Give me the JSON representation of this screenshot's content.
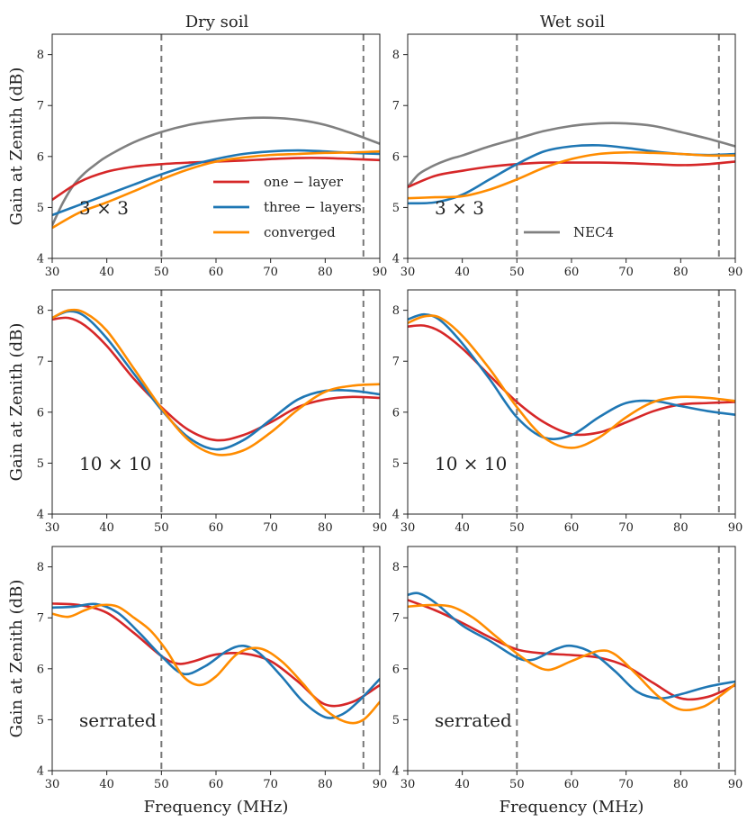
{
  "figure": {
    "col_titles": [
      "Dry soil",
      "Wet soil"
    ],
    "ylabel": "Gain at Zenith (dB)",
    "xlabel": "Frequency (MHz)"
  },
  "colors": {
    "one-layer": "#d62728",
    "three-layers": "#1f77b4",
    "converged": "#ff8c00",
    "NEC4": "#808080",
    "vline": "#777777"
  },
  "legend": {
    "left": [
      {
        "key": "one-layer",
        "label": "one − layer"
      },
      {
        "key": "three-layers",
        "label": "three − layers"
      },
      {
        "key": "converged",
        "label": "converged"
      }
    ],
    "right": [
      {
        "key": "NEC4",
        "label": "NEC4"
      }
    ]
  },
  "chart_data": [
    {
      "type": "line",
      "title": "Dry soil",
      "panel_label": "3 × 3",
      "xlim": [
        30,
        90
      ],
      "ylim": [
        4,
        8.4
      ],
      "xticks": [
        30,
        40,
        50,
        60,
        70,
        80,
        90
      ],
      "yticks": [
        4,
        5,
        6,
        7,
        8
      ],
      "xlabel": "",
      "ylabel": "Gain at Zenith (dB)",
      "vlines": [
        50,
        87
      ],
      "series": [
        {
          "name": "NEC4",
          "x": [
            30,
            32,
            34,
            36,
            38,
            40,
            45,
            50,
            55,
            60,
            65,
            70,
            75,
            80,
            85,
            90
          ],
          "values": [
            4.65,
            5.1,
            5.45,
            5.68,
            5.85,
            6.0,
            6.28,
            6.48,
            6.62,
            6.7,
            6.75,
            6.76,
            6.72,
            6.62,
            6.45,
            6.25
          ]
        },
        {
          "name": "one-layer",
          "x": [
            30,
            35,
            40,
            45,
            50,
            55,
            60,
            65,
            70,
            75,
            80,
            85,
            90
          ],
          "values": [
            5.15,
            5.5,
            5.7,
            5.8,
            5.85,
            5.88,
            5.9,
            5.92,
            5.95,
            5.97,
            5.97,
            5.95,
            5.93
          ]
        },
        {
          "name": "three-layers",
          "x": [
            30,
            35,
            40,
            45,
            50,
            55,
            60,
            65,
            70,
            75,
            80,
            85,
            90
          ],
          "values": [
            4.85,
            5.05,
            5.25,
            5.45,
            5.65,
            5.82,
            5.95,
            6.05,
            6.1,
            6.12,
            6.1,
            6.07,
            6.05
          ]
        },
        {
          "name": "converged",
          "x": [
            30,
            35,
            40,
            45,
            50,
            55,
            60,
            65,
            70,
            75,
            80,
            85,
            90
          ],
          "values": [
            4.6,
            4.9,
            5.1,
            5.32,
            5.55,
            5.75,
            5.9,
            5.98,
            6.03,
            6.05,
            6.07,
            6.08,
            6.1
          ]
        }
      ]
    },
    {
      "type": "line",
      "title": "Wet soil",
      "panel_label": "3 × 3",
      "xlim": [
        30,
        90
      ],
      "ylim": [
        4,
        8.4
      ],
      "xticks": [
        30,
        40,
        50,
        60,
        70,
        80,
        90
      ],
      "yticks": [
        4,
        5,
        6,
        7,
        8
      ],
      "xlabel": "",
      "ylabel": "",
      "vlines": [
        50,
        87
      ],
      "series": [
        {
          "name": "NEC4",
          "x": [
            30,
            32,
            34,
            36,
            38,
            40,
            45,
            50,
            55,
            60,
            65,
            70,
            75,
            80,
            85,
            90
          ],
          "values": [
            5.4,
            5.65,
            5.78,
            5.88,
            5.96,
            6.02,
            6.2,
            6.35,
            6.5,
            6.6,
            6.65,
            6.65,
            6.6,
            6.48,
            6.35,
            6.2
          ]
        },
        {
          "name": "one-layer",
          "x": [
            30,
            35,
            40,
            45,
            50,
            55,
            60,
            65,
            70,
            75,
            80,
            85,
            90
          ],
          "values": [
            5.4,
            5.62,
            5.72,
            5.8,
            5.85,
            5.88,
            5.88,
            5.88,
            5.87,
            5.85,
            5.83,
            5.85,
            5.9
          ]
        },
        {
          "name": "three-layers",
          "x": [
            30,
            35,
            40,
            45,
            50,
            55,
            60,
            65,
            70,
            75,
            80,
            85,
            90
          ],
          "values": [
            5.08,
            5.1,
            5.25,
            5.55,
            5.85,
            6.1,
            6.2,
            6.22,
            6.17,
            6.1,
            6.05,
            6.03,
            6.05
          ]
        },
        {
          "name": "converged",
          "x": [
            30,
            35,
            40,
            45,
            50,
            55,
            60,
            65,
            70,
            75,
            80,
            85,
            90
          ],
          "values": [
            5.18,
            5.2,
            5.22,
            5.35,
            5.55,
            5.78,
            5.95,
            6.05,
            6.08,
            6.07,
            6.05,
            6.02,
            6.02
          ]
        }
      ]
    },
    {
      "type": "line",
      "title": "",
      "panel_label": "10 × 10",
      "xlim": [
        30,
        90
      ],
      "ylim": [
        4,
        8.4
      ],
      "xticks": [
        30,
        40,
        50,
        60,
        70,
        80,
        90
      ],
      "yticks": [
        4,
        5,
        6,
        7,
        8
      ],
      "xlabel": "",
      "ylabel": "Gain at Zenith (dB)",
      "vlines": [
        50,
        87
      ],
      "series": [
        {
          "name": "one-layer",
          "x": [
            30,
            33,
            36,
            40,
            45,
            50,
            55,
            60,
            65,
            70,
            75,
            80,
            85,
            90
          ],
          "values": [
            7.82,
            7.85,
            7.7,
            7.3,
            6.65,
            6.1,
            5.65,
            5.45,
            5.55,
            5.8,
            6.1,
            6.25,
            6.3,
            6.28
          ]
        },
        {
          "name": "three-layers",
          "x": [
            30,
            33,
            36,
            40,
            45,
            50,
            55,
            60,
            65,
            70,
            75,
            80,
            85,
            90
          ],
          "values": [
            7.85,
            7.98,
            7.88,
            7.45,
            6.75,
            6.05,
            5.5,
            5.27,
            5.45,
            5.85,
            6.25,
            6.42,
            6.42,
            6.35
          ]
        },
        {
          "name": "converged",
          "x": [
            30,
            33,
            36,
            40,
            45,
            50,
            55,
            60,
            65,
            70,
            75,
            80,
            85,
            90
          ],
          "values": [
            7.85,
            8.0,
            7.95,
            7.6,
            6.85,
            6.08,
            5.45,
            5.17,
            5.25,
            5.6,
            6.05,
            6.4,
            6.52,
            6.55
          ]
        }
      ]
    },
    {
      "type": "line",
      "title": "",
      "panel_label": "10 × 10",
      "xlim": [
        30,
        90
      ],
      "ylim": [
        4,
        8.4
      ],
      "xticks": [
        30,
        40,
        50,
        60,
        70,
        80,
        90
      ],
      "yticks": [
        4,
        5,
        6,
        7,
        8
      ],
      "xlabel": "",
      "ylabel": "",
      "vlines": [
        50,
        87
      ],
      "series": [
        {
          "name": "one-layer",
          "x": [
            30,
            33,
            36,
            40,
            45,
            50,
            55,
            60,
            65,
            70,
            75,
            80,
            85,
            90
          ],
          "values": [
            7.68,
            7.7,
            7.58,
            7.25,
            6.72,
            6.2,
            5.8,
            5.57,
            5.6,
            5.8,
            6.02,
            6.15,
            6.18,
            6.2
          ]
        },
        {
          "name": "three-layers",
          "x": [
            30,
            33,
            36,
            40,
            45,
            50,
            55,
            60,
            65,
            70,
            75,
            80,
            85,
            90
          ],
          "values": [
            7.82,
            7.92,
            7.8,
            7.35,
            6.65,
            5.9,
            5.5,
            5.55,
            5.9,
            6.18,
            6.22,
            6.12,
            6.02,
            5.95
          ]
        },
        {
          "name": "converged",
          "x": [
            30,
            33,
            36,
            40,
            45,
            50,
            55,
            60,
            65,
            70,
            75,
            80,
            85,
            90
          ],
          "values": [
            7.75,
            7.88,
            7.85,
            7.5,
            6.85,
            6.1,
            5.5,
            5.3,
            5.5,
            5.9,
            6.2,
            6.3,
            6.28,
            6.22
          ]
        }
      ]
    },
    {
      "type": "line",
      "title": "",
      "panel_label": "serrated",
      "xlim": [
        30,
        90
      ],
      "ylim": [
        4,
        8.4
      ],
      "xticks": [
        30,
        40,
        50,
        60,
        70,
        80,
        90
      ],
      "yticks": [
        4,
        5,
        6,
        7,
        8
      ],
      "xlabel": "Frequency (MHz)",
      "ylabel": "Gain at Zenith (dB)",
      "vlines": [
        50,
        87
      ],
      "series": [
        {
          "name": "one-layer",
          "x": [
            30,
            35,
            40,
            45,
            50,
            53,
            56,
            60,
            65,
            70,
            75,
            80,
            85,
            90
          ],
          "values": [
            7.28,
            7.25,
            7.1,
            6.7,
            6.25,
            6.1,
            6.15,
            6.28,
            6.3,
            6.15,
            5.75,
            5.3,
            5.35,
            5.68
          ]
        },
        {
          "name": "three-layers",
          "x": [
            30,
            34,
            38,
            42,
            46,
            50,
            54,
            58,
            62,
            65,
            68,
            72,
            76,
            80,
            83,
            86,
            90
          ],
          "values": [
            7.2,
            7.22,
            7.27,
            7.1,
            6.7,
            6.25,
            5.9,
            6.05,
            6.35,
            6.45,
            6.3,
            5.85,
            5.35,
            5.05,
            5.1,
            5.35,
            5.8
          ]
        },
        {
          "name": "converged",
          "x": [
            30,
            33,
            36,
            39,
            42,
            45,
            48,
            51,
            54,
            57,
            60,
            64,
            68,
            72,
            76,
            80,
            84,
            87,
            90
          ],
          "values": [
            7.08,
            7.02,
            7.15,
            7.25,
            7.22,
            7.0,
            6.75,
            6.35,
            5.85,
            5.68,
            5.85,
            6.3,
            6.4,
            6.15,
            5.7,
            5.2,
            4.95,
            5.0,
            5.35
          ]
        }
      ]
    },
    {
      "type": "line",
      "title": "",
      "panel_label": "serrated",
      "xlim": [
        30,
        90
      ],
      "ylim": [
        4,
        8.4
      ],
      "xticks": [
        30,
        40,
        50,
        60,
        70,
        80,
        90
      ],
      "yticks": [
        4,
        5,
        6,
        7,
        8
      ],
      "xlabel": "Frequency (MHz)",
      "ylabel": "",
      "vlines": [
        50,
        87
      ],
      "series": [
        {
          "name": "one-layer",
          "x": [
            30,
            35,
            40,
            45,
            50,
            55,
            60,
            65,
            70,
            75,
            80,
            85,
            90
          ],
          "values": [
            7.35,
            7.15,
            6.9,
            6.62,
            6.38,
            6.3,
            6.27,
            6.22,
            6.05,
            5.72,
            5.42,
            5.45,
            5.68
          ]
        },
        {
          "name": "three-layers",
          "x": [
            30,
            32,
            35,
            40,
            45,
            50,
            53,
            57,
            60,
            64,
            68,
            72,
            76,
            80,
            85,
            90
          ],
          "values": [
            7.45,
            7.48,
            7.3,
            6.85,
            6.55,
            6.22,
            6.18,
            6.38,
            6.45,
            6.3,
            5.95,
            5.55,
            5.42,
            5.5,
            5.65,
            5.75
          ]
        },
        {
          "name": "converged",
          "x": [
            30,
            34,
            38,
            42,
            46,
            50,
            53,
            56,
            60,
            65,
            68,
            72,
            76,
            80,
            84,
            87,
            90
          ],
          "values": [
            7.22,
            7.25,
            7.22,
            7.0,
            6.65,
            6.3,
            6.08,
            5.98,
            6.15,
            6.35,
            6.28,
            5.88,
            5.45,
            5.2,
            5.25,
            5.45,
            5.7
          ]
        }
      ]
    }
  ]
}
